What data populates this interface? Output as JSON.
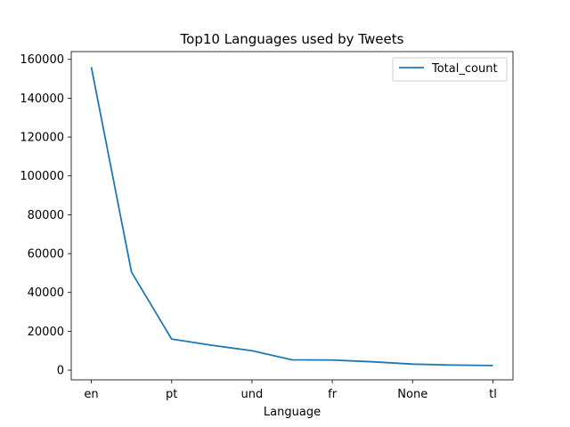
{
  "chart_data": {
    "type": "line",
    "title": "Top10 Languages used by Tweets",
    "xlabel": "Language",
    "ylabel": "",
    "x_tick_labels": [
      "en",
      "pt",
      "und",
      "fr",
      "None",
      "tl"
    ],
    "x_tick_indices": [
      0,
      2,
      4,
      6,
      8,
      10
    ],
    "ylim": [
      -5000,
      164000
    ],
    "y_ticks": [
      0,
      20000,
      40000,
      60000,
      80000,
      100000,
      120000,
      140000,
      160000
    ],
    "y_tick_labels": [
      "0",
      "20000",
      "40000",
      "60000",
      "80000",
      "100000",
      "120000",
      "140000",
      "160000"
    ],
    "legend_position": "top-right",
    "grid": false,
    "series": [
      {
        "name": "Total_count",
        "color": "#1f77b4",
        "values": [
          156000,
          50500,
          16000,
          12800,
          10000,
          5300,
          5200,
          4300,
          3100,
          2600,
          2400
        ]
      }
    ]
  }
}
